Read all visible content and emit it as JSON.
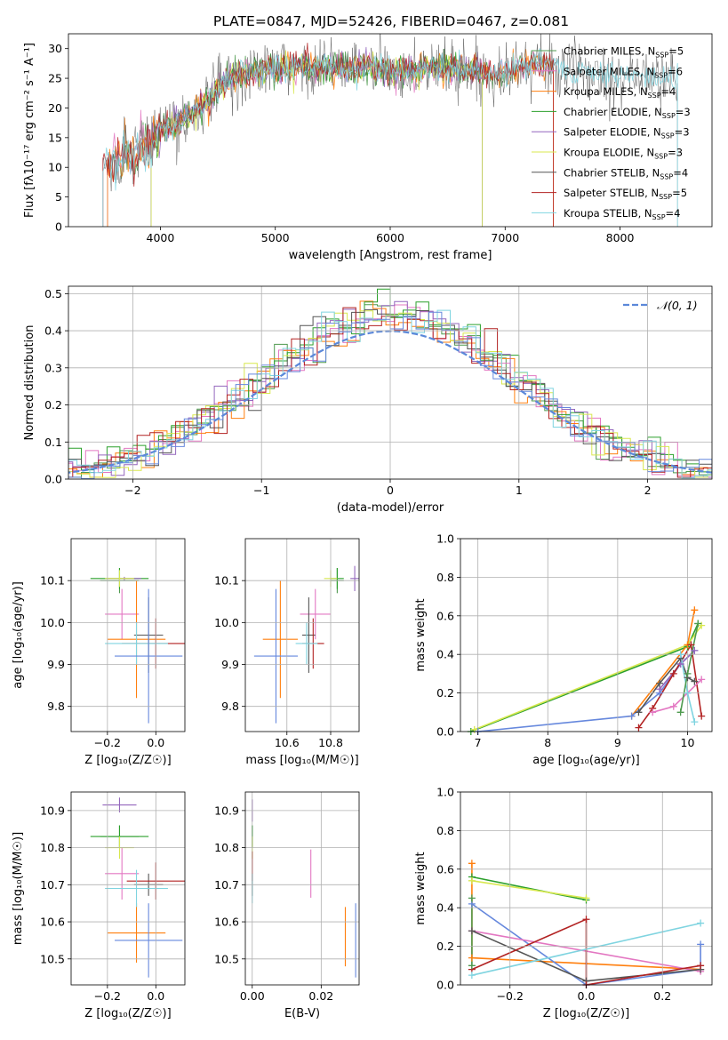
{
  "figure_title": "PLATE=0847, MJD=52426, FIBERID=0467, z=0.081",
  "colors": [
    "#4f9a4f",
    "#e377c2",
    "#ff7f0e",
    "#2ca02c",
    "#9467bd",
    "#d8e84f",
    "#555555",
    "#b22222",
    "#7fd4e0",
    "#6688dd"
  ],
  "chart_data": [
    {
      "id": "spectrum",
      "type": "line",
      "title": "PLATE=0847, MJD=52426, FIBERID=0467, z=0.081",
      "xlabel": "wavelength [Angstrom, rest frame]",
      "ylabel": "Flux [fλ10⁻¹⁷ erg cm⁻² s⁻¹ A⁻¹]",
      "xlim": [
        3200,
        8800
      ],
      "ylim": [
        0,
        32.5
      ],
      "xticks": [
        "4000",
        "5000",
        "6000",
        "7000",
        "8000"
      ],
      "yticks": [
        "0",
        "5",
        "10",
        "15",
        "20",
        "25",
        "30"
      ],
      "legend_position": "right",
      "grid": false,
      "continuum_anchors_x": [
        3500,
        3700,
        3900,
        4000,
        4200,
        4400,
        4600,
        4800,
        5000,
        5200,
        5400,
        5600,
        5800,
        6000,
        6200,
        6400,
        6600,
        6800,
        7000,
        7200,
        7300,
        7500,
        8000,
        8400
      ],
      "continuum_anchors_y": [
        10,
        12,
        13,
        16,
        18,
        21,
        25,
        26,
        26.5,
        27,
        27,
        26.5,
        27,
        26,
        26.5,
        27,
        26.5,
        26,
        26,
        27,
        27.5,
        26.5,
        25.5,
        25
      ],
      "series": [
        {
          "name": "Chabrier MILES, N_SSP=5",
          "xrange": [
            3540,
            7420
          ]
        },
        {
          "name": "Salpeter MILES, N_SSP=6",
          "xrange": [
            3540,
            7420
          ]
        },
        {
          "name": "Kroupa MILES, N_SSP=4",
          "xrange": [
            3540,
            7420
          ]
        },
        {
          "name": "Chabrier ELODIE, N_SSP=3",
          "xrange": [
            3920,
            6800
          ]
        },
        {
          "name": "Salpeter ELODIE, N_SSP=3",
          "xrange": [
            3920,
            6800
          ]
        },
        {
          "name": "Kroupa ELODIE, N_SSP=3",
          "xrange": [
            3920,
            6800
          ]
        },
        {
          "name": "Chabrier STELIB, N_SSP=4",
          "xrange": [
            3500,
            8500
          ]
        },
        {
          "name": "Salpeter STELIB, N_SSP=5",
          "xrange": [
            3500,
            7420
          ]
        },
        {
          "name": "Kroupa STELIB, N_SSP=4",
          "xrange": [
            3500,
            8500
          ]
        }
      ]
    },
    {
      "id": "residuals",
      "type": "line",
      "xlabel": "(data-model)/error",
      "ylabel": "Normed distribution",
      "xlim": [
        -2.5,
        2.5
      ],
      "ylim": [
        0,
        0.52
      ],
      "xticks": [
        "−2",
        "−1",
        "0",
        "1",
        "2"
      ],
      "yticks": [
        "0.0",
        "0.1",
        "0.2",
        "0.3",
        "0.4",
        "0.5"
      ],
      "grid": true,
      "bin_width": 0.1,
      "legend": [
        "𝒩(0, 1)"
      ],
      "reference": "normal(0,1)"
    },
    {
      "id": "age_vs_Z",
      "type": "scatter",
      "xlabel": "Z [log₁₀(Z/Z☉)]",
      "ylabel": "age  [log₁₀(age/yr)]",
      "xlim": [
        -0.35,
        0.12
      ],
      "ylim": [
        9.74,
        10.2
      ],
      "xticks": [
        {
          "v": -0.2,
          "t": "−0.2"
        },
        {
          "v": 0,
          "t": "0.0"
        }
      ],
      "yticks": [
        {
          "v": 9.8,
          "t": "9.8"
        },
        {
          "v": 9.9,
          "t": "9.9"
        },
        {
          "v": 10.0,
          "t": "10.0"
        },
        {
          "v": 10.1,
          "t": "10.1"
        }
      ],
      "grid": true,
      "points": [
        {
          "c": 0,
          "x": -0.15,
          "y": 10.1,
          "ex": 0.08,
          "ey": 0.03
        },
        {
          "c": 1,
          "x": -0.14,
          "y": 10.02,
          "ex": 0.07,
          "ey": 0.06
        },
        {
          "c": 2,
          "x": -0.08,
          "y": 9.96,
          "ex": 0.12,
          "ey": 0.14
        },
        {
          "c": 3,
          "x": -0.15,
          "y": 10.105,
          "ex": 0.12,
          "ey": 0.025
        },
        {
          "c": 4,
          "x": -0.13,
          "y": 10.105,
          "ex": 0.07,
          "ey": 0.004
        },
        {
          "c": 5,
          "x": -0.15,
          "y": 10.105,
          "ex": 0.06,
          "ey": 0.02
        },
        {
          "c": 6,
          "x": -0.03,
          "y": 9.97,
          "ex": 0.06,
          "ey": 0.09
        },
        {
          "c": 7,
          "x": 0.0,
          "y": 9.95,
          "ex": 0.14,
          "ey": 0.06
        },
        {
          "c": 8,
          "x": -0.08,
          "y": 9.95,
          "ex": 0.13,
          "ey": 0.05
        },
        {
          "c": 9,
          "x": -0.03,
          "y": 9.92,
          "ex": 0.14,
          "ey": 0.16
        }
      ]
    },
    {
      "id": "age_vs_mass",
      "type": "scatter",
      "xlabel": "mass [log₁₀(M/M☉)]",
      "ylabel": "",
      "xlim": [
        10.41,
        10.93
      ],
      "ylim": [
        9.74,
        10.2
      ],
      "xticks": [
        {
          "v": 10.6,
          "t": "10.6"
        },
        {
          "v": 10.8,
          "t": "10.8"
        }
      ],
      "yticks": [
        {
          "v": 9.8,
          "t": "9.8"
        },
        {
          "v": 9.9,
          "t": "9.9"
        },
        {
          "v": 10.0,
          "t": "10.0"
        },
        {
          "v": 10.1,
          "t": "10.1"
        }
      ],
      "grid": true,
      "points": [
        {
          "c": 0,
          "x": 10.83,
          "y": 10.1,
          "ex": 0.03,
          "ey": 0.03
        },
        {
          "c": 1,
          "x": 10.73,
          "y": 10.02,
          "ex": 0.07,
          "ey": 0.06
        },
        {
          "c": 2,
          "x": 10.57,
          "y": 9.96,
          "ex": 0.08,
          "ey": 0.14
        },
        {
          "c": 3,
          "x": 10.83,
          "y": 10.105,
          "ex": 0.03,
          "ey": 0.025
        },
        {
          "c": 4,
          "x": 10.91,
          "y": 10.105,
          "ex": 0.02,
          "ey": 0.03
        },
        {
          "c": 5,
          "x": 10.8,
          "y": 10.105,
          "ex": 0.03,
          "ey": 0.02
        },
        {
          "c": 6,
          "x": 10.7,
          "y": 9.97,
          "ex": 0.03,
          "ey": 0.09
        },
        {
          "c": 7,
          "x": 10.72,
          "y": 9.95,
          "ex": 0.05,
          "ey": 0.06
        },
        {
          "c": 8,
          "x": 10.69,
          "y": 9.95,
          "ex": 0.05,
          "ey": 0.05
        },
        {
          "c": 9,
          "x": 10.55,
          "y": 9.92,
          "ex": 0.1,
          "ey": 0.16
        }
      ]
    },
    {
      "id": "weight_vs_age",
      "type": "line",
      "xlabel": "age  [log₁₀(age/yr)]",
      "ylabel": "mass weight",
      "xlim": [
        6.75,
        10.35
      ],
      "ylim": [
        0,
        1
      ],
      "xticks": [
        {
          "v": 7,
          "t": "7"
        },
        {
          "v": 8,
          "t": "8"
        },
        {
          "v": 9,
          "t": "9"
        },
        {
          "v": 10,
          "t": "10"
        }
      ],
      "yticks": [
        {
          "v": 0,
          "t": "0.0"
        },
        {
          "v": 0.2,
          "t": "0.2"
        },
        {
          "v": 0.4,
          "t": "0.4"
        },
        {
          "v": 0.6,
          "t": "0.6"
        },
        {
          "v": 0.8,
          "t": "0.8"
        },
        {
          "v": 1,
          "t": "1.0"
        }
      ],
      "grid": true,
      "series": [
        {
          "c": 3,
          "x": [
            6.9,
            10.0,
            10.15
          ],
          "y": [
            0.0,
            0.44,
            0.56
          ]
        },
        {
          "c": 5,
          "x": [
            6.95,
            10.0,
            10.2
          ],
          "y": [
            0.01,
            0.45,
            0.55
          ]
        },
        {
          "c": 2,
          "x": [
            9.2,
            10.0,
            10.1
          ],
          "y": [
            0.08,
            0.45,
            0.63
          ]
        },
        {
          "c": 9,
          "x": [
            7.0,
            9.2,
            9.6,
            9.9,
            10.1
          ],
          "y": [
            0.0,
            0.08,
            0.2,
            0.35,
            0.42
          ]
        },
        {
          "c": 4,
          "x": [
            9.6,
            9.9,
            10.1
          ],
          "y": [
            0.22,
            0.35,
            0.42
          ]
        },
        {
          "c": 7,
          "x": [
            9.3,
            9.5,
            9.8,
            10.05,
            10.2
          ],
          "y": [
            0.02,
            0.12,
            0.3,
            0.45,
            0.08
          ]
        },
        {
          "c": 6,
          "x": [
            9.3,
            9.6,
            9.9,
            10.0,
            10.1
          ],
          "y": [
            0.1,
            0.25,
            0.38,
            0.28,
            0.26
          ]
        },
        {
          "c": 1,
          "x": [
            9.5,
            9.8,
            10.0,
            10.2
          ],
          "y": [
            0.1,
            0.13,
            0.2,
            0.27
          ]
        },
        {
          "c": 8,
          "x": [
            9.9,
            10.0,
            10.1
          ],
          "y": [
            0.4,
            0.2,
            0.05
          ]
        },
        {
          "c": 0,
          "x": [
            9.9,
            10.0,
            10.15
          ],
          "y": [
            0.1,
            0.3,
            0.56
          ]
        }
      ]
    },
    {
      "id": "mass_vs_Z",
      "type": "scatter",
      "xlabel": "Z [log₁₀(Z/Z☉)]",
      "ylabel": "mass [log₁₀(M/M☉)]",
      "xlim": [
        -0.35,
        0.12
      ],
      "ylim": [
        10.43,
        10.95
      ],
      "xticks": [
        {
          "v": -0.2,
          "t": "−0.2"
        },
        {
          "v": 0,
          "t": "0.0"
        }
      ],
      "yticks": [
        {
          "v": 10.5,
          "t": "10.5"
        },
        {
          "v": 10.6,
          "t": "10.6"
        },
        {
          "v": 10.7,
          "t": "10.7"
        },
        {
          "v": 10.8,
          "t": "10.8"
        },
        {
          "v": 10.9,
          "t": "10.9"
        }
      ],
      "grid": true,
      "points": [
        {
          "c": 0,
          "x": -0.15,
          "y": 10.83,
          "ex": 0.08,
          "ey": 0.03
        },
        {
          "c": 1,
          "x": -0.14,
          "y": 10.73,
          "ex": 0.07,
          "ey": 0.07
        },
        {
          "c": 2,
          "x": -0.08,
          "y": 10.57,
          "ex": 0.12,
          "ey": 0.08
        },
        {
          "c": 3,
          "x": -0.15,
          "y": 10.83,
          "ex": 0.12,
          "ey": 0.03
        },
        {
          "c": 4,
          "x": -0.15,
          "y": 10.915,
          "ex": 0.07,
          "ey": 0.02
        },
        {
          "c": 5,
          "x": -0.15,
          "y": 10.8,
          "ex": 0.06,
          "ey": 0.03
        },
        {
          "c": 6,
          "x": -0.03,
          "y": 10.7,
          "ex": 0.06,
          "ey": 0.03
        },
        {
          "c": 7,
          "x": 0.0,
          "y": 10.71,
          "ex": 0.12,
          "ey": 0.05
        },
        {
          "c": 8,
          "x": -0.08,
          "y": 10.69,
          "ex": 0.13,
          "ey": 0.05
        },
        {
          "c": 9,
          "x": -0.03,
          "y": 10.55,
          "ex": 0.14,
          "ey": 0.1
        }
      ]
    },
    {
      "id": "mass_vs_ebv",
      "type": "scatter",
      "xlabel": "E(B-V)",
      "ylabel": "",
      "xlim": [
        -0.002,
        0.031
      ],
      "ylim": [
        10.43,
        10.95
      ],
      "xticks": [
        {
          "v": 0,
          "t": "0.00"
        },
        {
          "v": 0.02,
          "t": "0.02"
        }
      ],
      "yticks": [
        {
          "v": 10.5,
          "t": "10.5"
        },
        {
          "v": 10.6,
          "t": "10.6"
        },
        {
          "v": 10.7,
          "t": "10.7"
        },
        {
          "v": 10.8,
          "t": "10.8"
        },
        {
          "v": 10.9,
          "t": "10.9"
        }
      ],
      "grid": true,
      "points": [
        {
          "c": 0,
          "x": 0.0,
          "y": 10.83,
          "ex": 0,
          "ey": 0.03
        },
        {
          "c": 1,
          "x": 0.017,
          "y": 10.73,
          "ex": 0,
          "ey": 0.065
        },
        {
          "c": 2,
          "x": 0.027,
          "y": 10.56,
          "ex": 0,
          "ey": 0.08
        },
        {
          "c": 3,
          "x": 0.0,
          "y": 10.83,
          "ex": 0,
          "ey": 0.03
        },
        {
          "c": 4,
          "x": 0.0,
          "y": 10.9,
          "ex": 0,
          "ey": 0.03
        },
        {
          "c": 5,
          "x": 0.0,
          "y": 10.8,
          "ex": 0,
          "ey": 0.03
        },
        {
          "c": 6,
          "x": 0.0,
          "y": 10.7,
          "ex": 0,
          "ey": 0.03
        },
        {
          "c": 7,
          "x": 0.0,
          "y": 10.75,
          "ex": 0,
          "ey": 0.04
        },
        {
          "c": 8,
          "x": 0.0,
          "y": 10.69,
          "ex": 0,
          "ey": 0.04
        },
        {
          "c": 9,
          "x": 0.03,
          "y": 10.55,
          "ex": 0,
          "ey": 0.1
        }
      ]
    },
    {
      "id": "weight_vs_Z",
      "type": "line",
      "xlabel": "Z [log₁₀(Z/Z☉)]",
      "ylabel": "mass weight",
      "xlim": [
        -0.33,
        0.33
      ],
      "ylim": [
        0,
        1
      ],
      "xticks": [
        {
          "v": -0.2,
          "t": "−0.2"
        },
        {
          "v": 0,
          "t": "0.0"
        },
        {
          "v": 0.2,
          "t": "0.2"
        }
      ],
      "yticks": [
        {
          "v": 0,
          "t": "0.0"
        },
        {
          "v": 0.2,
          "t": "0.2"
        },
        {
          "v": 0.4,
          "t": "0.4"
        },
        {
          "v": 0.6,
          "t": "0.6"
        },
        {
          "v": 0.8,
          "t": "0.8"
        },
        {
          "v": 1,
          "t": "1.0"
        }
      ],
      "grid": true,
      "series": [
        {
          "c": 3,
          "x": [
            -0.3,
            0.0
          ],
          "y": [
            0.56,
            0.44
          ]
        },
        {
          "c": 5,
          "x": [
            -0.3,
            0.0
          ],
          "y": [
            0.54,
            0.45
          ]
        },
        {
          "c": 2,
          "x": [
            -0.3,
            -0.3,
            0.3
          ],
          "y": [
            0.63,
            0.14,
            0.08
          ]
        },
        {
          "c": 9,
          "x": [
            -0.3,
            0.0,
            0.3,
            0.3
          ],
          "y": [
            0.42,
            0.0,
            0.08,
            0.21
          ]
        },
        {
          "c": 1,
          "x": [
            -0.3,
            0.3
          ],
          "y": [
            0.28,
            0.07
          ]
        },
        {
          "c": 6,
          "x": [
            -0.3,
            0.0,
            0.3
          ],
          "y": [
            0.28,
            0.02,
            0.08
          ]
        },
        {
          "c": 7,
          "x": [
            -0.3,
            0.0,
            0.0,
            0.3
          ],
          "y": [
            0.08,
            0.34,
            0.0,
            0.1
          ]
        },
        {
          "c": 8,
          "x": [
            -0.3,
            0.3
          ],
          "y": [
            0.05,
            0.32
          ]
        },
        {
          "c": 0,
          "x": [
            -0.3,
            -0.3
          ],
          "y": [
            0.45,
            0.1
          ]
        }
      ]
    }
  ]
}
